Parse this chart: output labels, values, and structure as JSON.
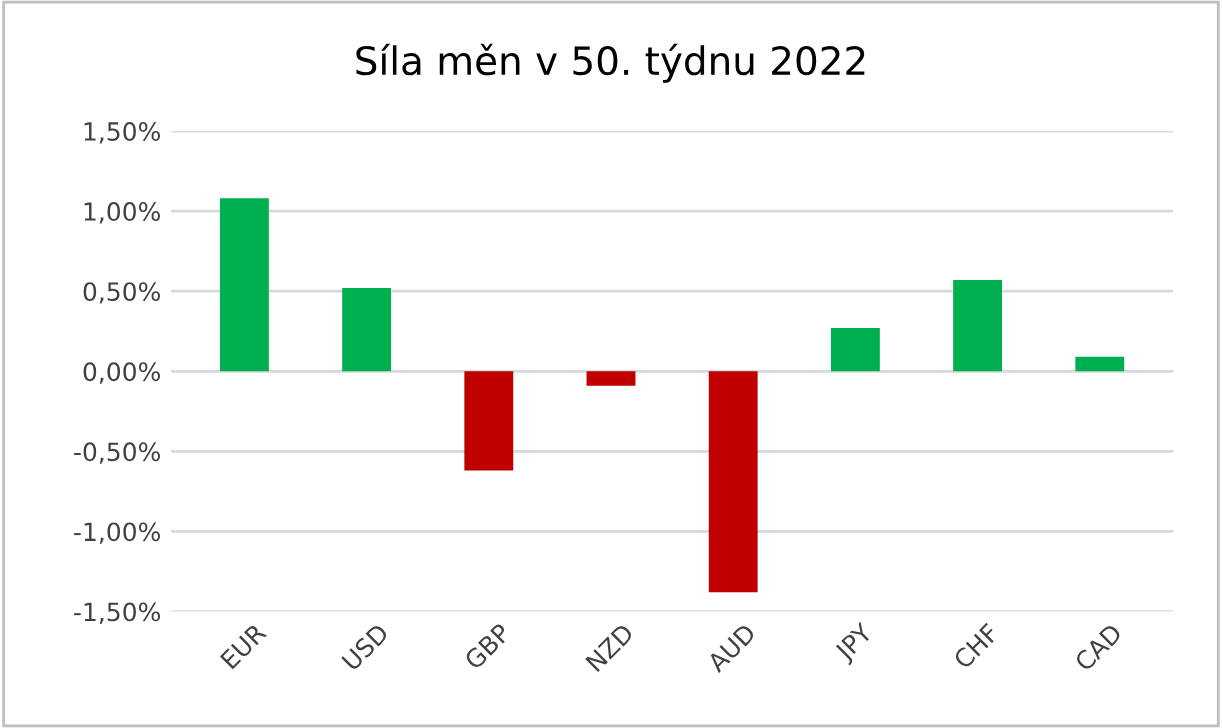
{
  "chart_data": {
    "type": "bar",
    "title": "Síla měn v 50. týdnu 2022",
    "categories": [
      "EUR",
      "USD",
      "GBP",
      "NZD",
      "AUD",
      "JPY",
      "CHF",
      "CAD"
    ],
    "values": [
      1.08,
      0.52,
      -0.62,
      -0.09,
      -1.38,
      0.27,
      0.57,
      0.09
    ],
    "colors": [
      "#00b050",
      "#00b050",
      "#c00000",
      "#c00000",
      "#c00000",
      "#00b050",
      "#00b050",
      "#00b050"
    ],
    "ylim": [
      -1.5,
      1.5
    ],
    "yticks": [
      {
        "value": -1.5,
        "label": "-1,50%"
      },
      {
        "value": -1.0,
        "label": "-1,00%"
      },
      {
        "value": -0.5,
        "label": "-0,50%"
      },
      {
        "value": 0,
        "label": "0,00%"
      },
      {
        "value": 0.5,
        "label": "0,50%"
      },
      {
        "value": 1.0,
        "label": "1,00%"
      },
      {
        "value": 1.5,
        "label": "1,50%"
      }
    ],
    "grid": "y"
  }
}
